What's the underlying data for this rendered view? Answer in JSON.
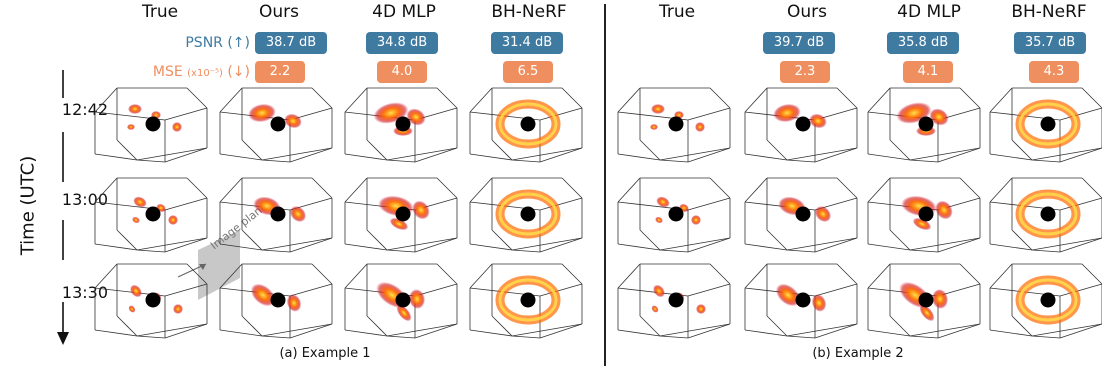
{
  "examples": [
    {
      "caption": "(a) Example 1",
      "columns": [
        "True",
        "Ours",
        "4D MLP",
        "BH-NeRF"
      ],
      "psnr_label": "PSNR (↑)",
      "mse_label": "MSE",
      "mse_unit": "(x10⁻⁵)",
      "mse_arrow": "(↓)",
      "psnr": [
        "38.7 dB",
        "34.8 dB",
        "31.4 dB"
      ],
      "mse": [
        "2.2",
        "4.0",
        "6.5"
      ]
    },
    {
      "caption": "(b) Example 2",
      "columns": [
        "True",
        "Ours",
        "4D MLP",
        "BH-NeRF"
      ],
      "psnr": [
        "39.7 dB",
        "35.8 dB",
        "35.7 dB"
      ],
      "mse": [
        "2.3",
        "4.1",
        "4.3"
      ]
    }
  ],
  "time_axis": {
    "title": "Time (UTC)",
    "times": [
      "12:42",
      "13:00",
      "13:30"
    ]
  },
  "annotation": "Image plane",
  "colors": {
    "psnr": "#3f7aa0",
    "mse": "#ef8f5f",
    "glow_hot": "#ffe14a",
    "glow_mid": "#ff6a00",
    "glow_cool": "#d0101a"
  }
}
